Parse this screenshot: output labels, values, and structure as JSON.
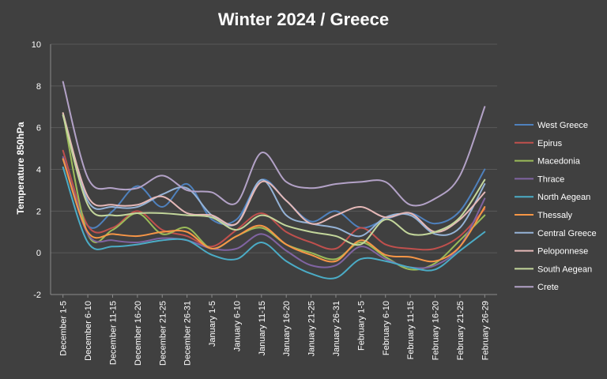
{
  "chart_data": {
    "type": "line",
    "title": "Winter 2024 / Greece",
    "xlabel": "",
    "ylabel": "Temperature 850hPa",
    "ylim": [
      -2,
      10
    ],
    "yticks": [
      -2,
      0,
      2,
      4,
      6,
      8,
      10
    ],
    "grid": true,
    "legend": "right",
    "categories": [
      "December 1-5",
      "December 6-10",
      "December 11-15",
      "December 16-20",
      "December 21-25",
      "December 26-31",
      "January 1-5",
      "January 6-10",
      "January 11-15",
      "January 16-20",
      "January 21-25",
      "January 26-31",
      "February 1-5",
      "February 6-10",
      "February 11-15",
      "February 16-20",
      "February 21-25",
      "February 26-29"
    ],
    "series": [
      {
        "name": "West Greece",
        "color": "#4f81bd",
        "values": [
          4.5,
          1.3,
          2.0,
          3.2,
          2.2,
          3.3,
          1.6,
          1.6,
          3.5,
          2.5,
          1.5,
          2.0,
          1.2,
          1.6,
          1.9,
          1.4,
          2.0,
          4.0
        ]
      },
      {
        "name": "Epirus",
        "color": "#c0504d",
        "values": [
          4.9,
          1.3,
          1.2,
          2.0,
          1.1,
          0.8,
          0.3,
          1.1,
          1.9,
          1.0,
          0.5,
          0.2,
          1.2,
          0.4,
          0.2,
          0.2,
          0.8,
          2.1
        ]
      },
      {
        "name": "Macedonia",
        "color": "#9bbb59",
        "values": [
          6.7,
          0.9,
          1.1,
          1.9,
          0.9,
          1.2,
          0.2,
          0.8,
          1.2,
          0.4,
          0.0,
          -0.3,
          0.5,
          -0.2,
          -0.8,
          -0.5,
          0.6,
          1.8
        ]
      },
      {
        "name": "Thrace",
        "color": "#8064a2",
        "values": [
          4.6,
          0.9,
          0.6,
          0.5,
          0.7,
          0.6,
          0.2,
          0.2,
          0.9,
          0.1,
          -0.6,
          -0.6,
          0.3,
          -0.3,
          -0.7,
          -0.6,
          0.3,
          2.6
        ]
      },
      {
        "name": "North Aegean",
        "color": "#4bacc6",
        "values": [
          4.1,
          0.5,
          0.3,
          0.4,
          0.6,
          0.6,
          -0.1,
          -0.3,
          0.5,
          -0.4,
          -1.0,
          -1.2,
          -0.3,
          -0.4,
          -0.7,
          -0.8,
          0.1,
          1.0
        ]
      },
      {
        "name": "Thessaly",
        "color": "#f79646",
        "values": [
          4.5,
          1.0,
          0.9,
          0.8,
          1.0,
          1.0,
          0.2,
          0.8,
          1.3,
          0.4,
          -0.1,
          -0.4,
          0.6,
          -0.1,
          -0.2,
          -0.4,
          0.3,
          2.2
        ]
      },
      {
        "name": "Central Greece",
        "color": "#95b3d7",
        "values": [
          6.6,
          2.5,
          2.2,
          2.2,
          2.8,
          3.1,
          1.8,
          1.4,
          3.5,
          1.8,
          1.4,
          1.2,
          0.8,
          1.7,
          1.8,
          0.9,
          1.2,
          3.3
        ]
      },
      {
        "name": "Peloponnese",
        "color": "#e6b9b8",
        "values": [
          6.7,
          2.7,
          2.3,
          2.3,
          2.7,
          1.9,
          1.8,
          1.4,
          3.4,
          2.5,
          1.4,
          1.8,
          2.2,
          1.7,
          1.9,
          1.0,
          1.6,
          2.9
        ]
      },
      {
        "name": "South Aegean",
        "color": "#c3d69b",
        "values": [
          6.6,
          2.3,
          1.8,
          1.9,
          1.9,
          1.8,
          1.7,
          1.1,
          1.8,
          1.3,
          1.0,
          0.8,
          0.4,
          1.6,
          0.9,
          1.0,
          1.7,
          3.5
        ]
      },
      {
        "name": "Crete",
        "color": "#b3a2c7",
        "values": [
          8.2,
          3.6,
          3.1,
          3.1,
          3.7,
          3.0,
          2.9,
          2.4,
          4.8,
          3.4,
          3.1,
          3.3,
          3.4,
          3.4,
          2.3,
          2.6,
          3.7,
          7.0
        ]
      }
    ]
  }
}
